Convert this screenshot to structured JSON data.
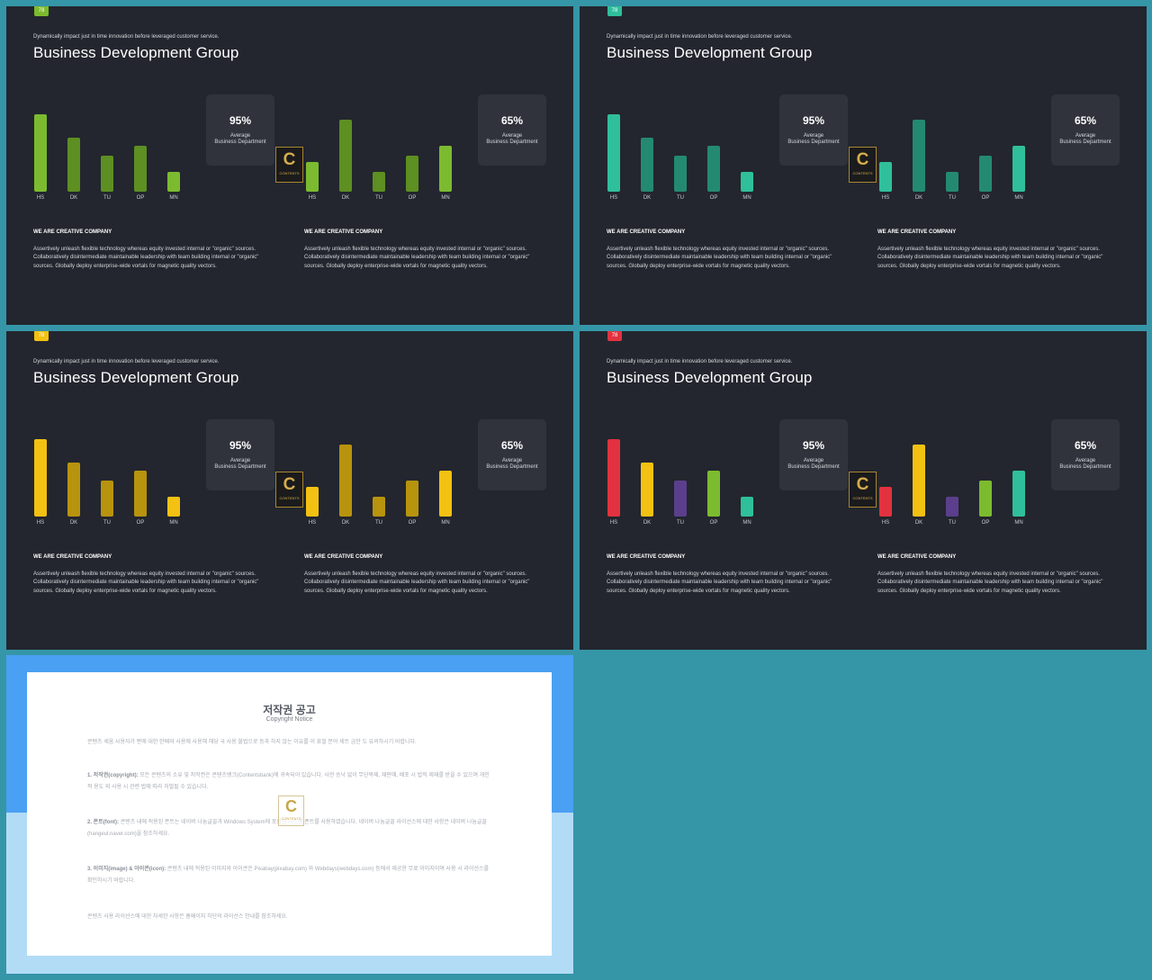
{
  "slides": [
    {
      "page_num": "78",
      "badge_color": "#7cbb2f",
      "subtitle": "Dynamically impact just in time innovation  before leveraged customer service.",
      "title": "Business Development Group",
      "left_chart": {
        "categories": [
          "HS",
          "DK",
          "TU",
          "OP",
          "MN"
        ],
        "values": [
          86,
          60,
          40,
          51,
          22
        ],
        "colors": [
          "#7cbb2f",
          "#5d8f22",
          "#5d8f22",
          "#5d8f22",
          "#7cbb2f"
        ]
      },
      "right_chart": {
        "categories": [
          "HS",
          "DK",
          "TU",
          "OP",
          "MN"
        ],
        "values": [
          33,
          80,
          22,
          40,
          51
        ],
        "colors": [
          "#7cbb2f",
          "#5d8f22",
          "#5d8f22",
          "#5d8f22",
          "#7cbb2f"
        ]
      },
      "stat_left": {
        "value": "95%",
        "line1": "Average",
        "line2": "Business Department"
      },
      "stat_right": {
        "value": "65%",
        "line1": "Average",
        "line2": "Business Department"
      },
      "logo": {
        "letter": "C",
        "text": "CONTENTS"
      },
      "text_left": {
        "heading": "WE ARE CREATIVE COMPANY",
        "body": "Assertively unleash flexible technology whereas equity invested internal or \"organic\" sources. Collaboratively disintermediate maintainable leadership with team building internal or \"organic\" sources. Globally deploy enterprise-wide vortals for magnetic quality vectors."
      },
      "text_right": {
        "heading": "WE ARE CREATIVE COMPANY",
        "body": "Assertively unleash flexible technology whereas equity invested internal or \"organic\" sources. Collaboratively disintermediate maintainable leadership with team building internal or \"organic\" sources. Globally deploy enterprise-wide vortals for magnetic quality vectors."
      }
    },
    {
      "page_num": "78",
      "badge_color": "#2fbf9b",
      "subtitle": "Dynamically impact just in time innovation  before leveraged customer service.",
      "title": "Business Development Group",
      "left_chart": {
        "categories": [
          "HS",
          "DK",
          "TU",
          "OP",
          "MN"
        ],
        "values": [
          86,
          60,
          40,
          51,
          22
        ],
        "colors": [
          "#2fbf9b",
          "#238a70",
          "#238a70",
          "#238a70",
          "#2fbf9b"
        ]
      },
      "right_chart": {
        "categories": [
          "HS",
          "DK",
          "TU",
          "OP",
          "MN"
        ],
        "values": [
          33,
          80,
          22,
          40,
          51
        ],
        "colors": [
          "#2fbf9b",
          "#238a70",
          "#238a70",
          "#238a70",
          "#2fbf9b"
        ]
      },
      "stat_left": {
        "value": "95%",
        "line1": "Average",
        "line2": "Business Department"
      },
      "stat_right": {
        "value": "65%",
        "line1": "Average",
        "line2": "Business Department"
      },
      "logo": {
        "letter": "C",
        "text": "CONTENTS"
      },
      "text_left": {
        "heading": "WE ARE CREATIVE COMPANY",
        "body": "Assertively unleash flexible technology whereas equity invested internal or \"organic\" sources. Collaboratively disintermediate maintainable leadership with team building internal or \"organic\" sources. Globally deploy enterprise-wide vortals for magnetic quality vectors."
      },
      "text_right": {
        "heading": "WE ARE CREATIVE COMPANY",
        "body": "Assertively unleash flexible technology whereas equity invested internal or \"organic\" sources. Collaboratively disintermediate maintainable leadership with team building internal or \"organic\" sources. Globally deploy enterprise-wide vortals for magnetic quality vectors."
      }
    },
    {
      "page_num": "78",
      "badge_color": "#f2c112",
      "subtitle": "Dynamically impact just in time innovation  before leveraged customer service.",
      "title": "Business Development Group",
      "left_chart": {
        "categories": [
          "HS",
          "DK",
          "TU",
          "OP",
          "MN"
        ],
        "values": [
          86,
          60,
          40,
          51,
          22
        ],
        "colors": [
          "#f2c112",
          "#b8930e",
          "#b8930e",
          "#b8930e",
          "#f2c112"
        ]
      },
      "right_chart": {
        "categories": [
          "HS",
          "DK",
          "TU",
          "OP",
          "MN"
        ],
        "values": [
          33,
          80,
          22,
          40,
          51
        ],
        "colors": [
          "#f2c112",
          "#b8930e",
          "#b8930e",
          "#b8930e",
          "#f2c112"
        ]
      },
      "stat_left": {
        "value": "95%",
        "line1": "Average",
        "line2": "Business Department"
      },
      "stat_right": {
        "value": "65%",
        "line1": "Average",
        "line2": "Business Department"
      },
      "logo": {
        "letter": "C",
        "text": "CONTENTS"
      },
      "text_left": {
        "heading": "WE ARE CREATIVE COMPANY",
        "body": "Assertively unleash flexible technology whereas equity invested internal or \"organic\" sources. Collaboratively disintermediate maintainable leadership with team building internal or \"organic\" sources. Globally deploy enterprise-wide vortals for magnetic quality vectors."
      },
      "text_right": {
        "heading": "WE ARE CREATIVE COMPANY",
        "body": "Assertively unleash flexible technology whereas equity invested internal or \"organic\" sources. Collaboratively disintermediate maintainable leadership with team building internal or \"organic\" sources. Globally deploy enterprise-wide vortals for magnetic quality vectors."
      }
    },
    {
      "page_num": "78",
      "badge_color": "#e2323f",
      "subtitle": "Dynamically impact just in time innovation  before leveraged customer service.",
      "title": "Business Development Group",
      "left_chart": {
        "categories": [
          "HS",
          "DK",
          "TU",
          "OP",
          "MN"
        ],
        "values": [
          86,
          60,
          40,
          51,
          22
        ],
        "colors": [
          "#e2323f",
          "#f2c112",
          "#5b3f8c",
          "#7cbb2f",
          "#2fbf9b"
        ]
      },
      "right_chart": {
        "categories": [
          "HS",
          "DK",
          "TU",
          "OP",
          "MN"
        ],
        "values": [
          33,
          80,
          22,
          40,
          51
        ],
        "colors": [
          "#e2323f",
          "#f2c112",
          "#5b3f8c",
          "#7cbb2f",
          "#2fbf9b"
        ]
      },
      "stat_left": {
        "value": "95%",
        "line1": "Average",
        "line2": "Business Department"
      },
      "stat_right": {
        "value": "65%",
        "line1": "Average",
        "line2": "Business Department"
      },
      "logo": {
        "letter": "C",
        "text": "CONTENTS"
      },
      "text_left": {
        "heading": "WE ARE CREATIVE COMPANY",
        "body": "Assertively unleash flexible technology whereas equity invested internal or \"organic\" sources. Collaboratively disintermediate maintainable leadership with team building internal or \"organic\" sources. Globally deploy enterprise-wide vortals for magnetic quality vectors."
      },
      "text_right": {
        "heading": "WE ARE CREATIVE COMPANY",
        "body": "Assertively unleash flexible technology whereas equity invested internal or \"organic\" sources. Collaboratively disintermediate maintainable leadership with team building internal or \"organic\" sources. Globally deploy enterprise-wide vortals for magnetic quality vectors."
      }
    }
  ],
  "notice": {
    "title": "저작권 공고",
    "subtitle": "Copyright Notice",
    "p1": "콘텐츠 세움 사용자가 편에 대한 안배와 사용에 사용해 해당 국 사용 불법으로 등과 하지 않는 이유를 이 표절 분야 세트 금안 도 유의하시기 바랍니다.",
    "p2_label": "1. 저작권(copyright):",
    "p2": "모든 콘텐츠의 소유 및 저작권은 콘텐츠뱅크(Contentsbank)에 귀속되어 있습니다. 사전 승낙 없이 무단복제, 재판매, 배포 시 법적 제재를 받을 수 있으며 개인적 용도 외 사용 시 관련 법에 따라 처벌될 수 있습니다.",
    "p3_label": "2. 폰트(font):",
    "p3": "콘텐츠 내에 적용된 폰트는 네이버 나눔글꼴과 Windows System에 포함된 시스템 폰트를 사용하였습니다. 네이버 나눔글꼴 라이선스에 대한 사항은 네이버 나눔글꼴(hangeul.naver.com)을 참조하세요.",
    "p4_label": "3. 이미지(image) & 아이콘(icon):",
    "p4": "콘텐츠 내에 적용된 이미지와 아이콘은 Pixabay(pixabay.com) 와 Webdays(webdays.com) 등에서 제공한 무료 이미지이며 사용 시 라이선스를 확인하시기 바랍니다.",
    "p5": "콘텐츠 사용 라이선스에 대한 자세한 사항은 홈페이지 하단의 라이선스 안내를 참조하세요.",
    "logo": {
      "letter": "C",
      "text": "CONTENTS"
    }
  }
}
